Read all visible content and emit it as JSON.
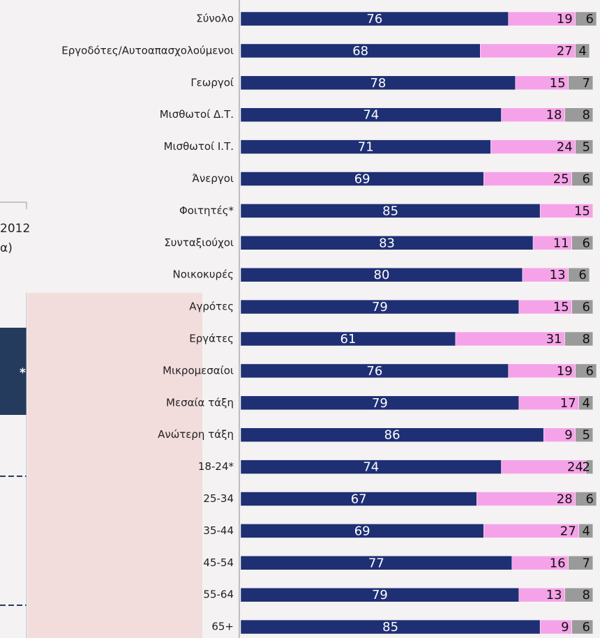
{
  "chart_data": {
    "type": "stacked-bar-horizontal",
    "categories": [
      "Σύνολο",
      "Εργοδότες/Αυτοαπασχολούμενοι",
      "Γεωργοί",
      "Μισθωτοί Δ.Τ.",
      "Μισθωτοί Ι.Τ.",
      "Άνεργοι",
      "Φοιτητές*",
      "Συνταξιούχοι",
      "Νοικοκυρές",
      "Αγρότες",
      "Εργάτες",
      "Μικρομεσαίοι",
      "Μεσαία τάξη",
      "Ανώτερη τάξη",
      "18-24*",
      "25-34",
      "35-44",
      "45-54",
      "55-64",
      "65+"
    ],
    "series": [
      {
        "color": "#1f2f73",
        "values": [
          76,
          68,
          78,
          74,
          71,
          69,
          85,
          83,
          80,
          79,
          61,
          76,
          79,
          86,
          74,
          67,
          69,
          77,
          79,
          85
        ]
      },
      {
        "color": "#f5a3e8",
        "values": [
          19,
          27,
          15,
          18,
          24,
          25,
          15,
          11,
          13,
          15,
          31,
          19,
          17,
          9,
          24,
          28,
          27,
          16,
          13,
          9
        ]
      },
      {
        "color": "#9a9a9a",
        "values": [
          6,
          4,
          7,
          8,
          5,
          6,
          null,
          6,
          6,
          6,
          8,
          6,
          4,
          5,
          2,
          6,
          4,
          7,
          8,
          6
        ]
      }
    ],
    "xlim": [
      0,
      102
    ],
    "annotations": [
      "2012",
      "α)",
      "*"
    ]
  }
}
